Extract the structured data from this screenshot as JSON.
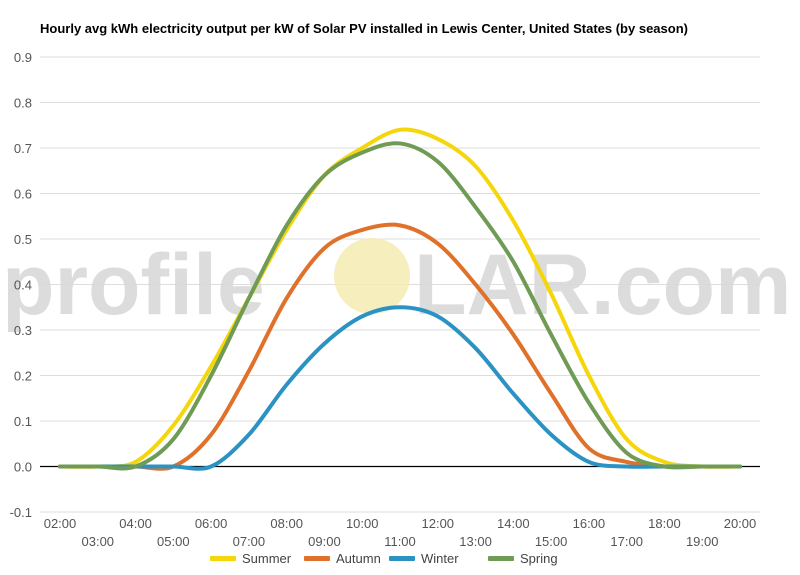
{
  "chart_data": {
    "type": "line",
    "title": "Hourly avg kWh electricity output per kW of Solar PV installed in Lewis Center, United States (by season)",
    "xlabel": "",
    "ylabel": "",
    "ylim": [
      -0.1,
      0.9
    ],
    "yticks": [
      "-0.1",
      "0.0",
      "0.1",
      "0.2",
      "0.3",
      "0.4",
      "0.5",
      "0.6",
      "0.7",
      "0.8",
      "0.9"
    ],
    "x": [
      "02:00",
      "03:00",
      "04:00",
      "05:00",
      "06:00",
      "07:00",
      "08:00",
      "09:00",
      "10:00",
      "11:00",
      "12:00",
      "13:00",
      "14:00",
      "15:00",
      "16:00",
      "17:00",
      "18:00",
      "19:00",
      "20:00"
    ],
    "grid": true,
    "legend_position": "bottom",
    "series": [
      {
        "name": "Summer",
        "color": "#f5d60b",
        "values": [
          0.0,
          0.0,
          0.01,
          0.09,
          0.22,
          0.37,
          0.52,
          0.64,
          0.7,
          0.74,
          0.72,
          0.66,
          0.54,
          0.38,
          0.2,
          0.06,
          0.01,
          0.0,
          0.0
        ]
      },
      {
        "name": "Autumn",
        "color": "#e0712a",
        "values": [
          0.0,
          0.0,
          0.0,
          0.0,
          0.07,
          0.21,
          0.37,
          0.48,
          0.52,
          0.53,
          0.49,
          0.4,
          0.29,
          0.16,
          0.04,
          0.01,
          0.0,
          0.0,
          0.0
        ]
      },
      {
        "name": "Winter",
        "color": "#2b93c3",
        "values": [
          0.0,
          0.0,
          0.0,
          0.0,
          0.0,
          0.07,
          0.18,
          0.27,
          0.33,
          0.35,
          0.33,
          0.26,
          0.16,
          0.07,
          0.01,
          0.0,
          0.0,
          0.0,
          0.0
        ]
      },
      {
        "name": "Spring",
        "color": "#6f9b55",
        "values": [
          0.0,
          0.0,
          0.0,
          0.06,
          0.2,
          0.37,
          0.53,
          0.64,
          0.69,
          0.71,
          0.67,
          0.57,
          0.45,
          0.29,
          0.14,
          0.03,
          0.0,
          0.0,
          0.0
        ]
      }
    ]
  },
  "watermark": {
    "text_left": "profile",
    "text_right": "LAR.com",
    "sun_color": "#f5ebb0"
  }
}
